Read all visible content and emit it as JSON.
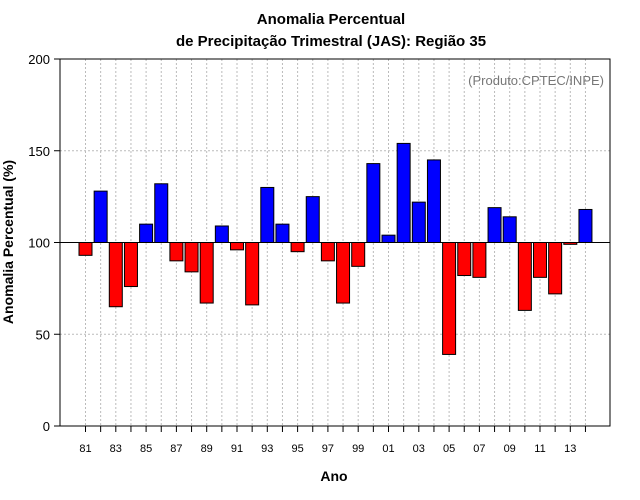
{
  "chart_data": {
    "type": "bar",
    "title_line1": "Anomalia Percentual",
    "title_line2": "de Precipitação Trimestral (JAS): Região 35",
    "xlabel": "Ano",
    "ylabel": "Anomalia Percentual (%)",
    "credit": "(Produto:CPTEC/INPE)",
    "baseline": 100,
    "ylim": [
      0,
      200
    ],
    "yticks": [
      0,
      50,
      100,
      150,
      200
    ],
    "ytick_labels": [
      "0",
      "50",
      "100",
      "150",
      "200"
    ],
    "grid": true,
    "xtick_labels": [
      "81",
      "83",
      "85",
      "87",
      "89",
      "91",
      "93",
      "95",
      "97",
      "99",
      "01",
      "03",
      "05",
      "07",
      "09",
      "11",
      "13"
    ],
    "categories": [
      "1981",
      "1982",
      "1983",
      "1984",
      "1985",
      "1986",
      "1987",
      "1988",
      "1989",
      "1990",
      "1991",
      "1992",
      "1993",
      "1994",
      "1995",
      "1996",
      "1997",
      "1998",
      "1999",
      "2000",
      "2001",
      "2002",
      "2003",
      "2004",
      "2005",
      "2006",
      "2007",
      "2008",
      "2009",
      "2010",
      "2011",
      "2012",
      "2013",
      "2014"
    ],
    "values": [
      93,
      128,
      65,
      76,
      110,
      132,
      90,
      84,
      67,
      109,
      96,
      66,
      130,
      110,
      95,
      125,
      90,
      67,
      87,
      143,
      104,
      154,
      122,
      145,
      39,
      82,
      81,
      119,
      114,
      63,
      81,
      72,
      99,
      118
    ],
    "colors": {
      "above": "#0000ff",
      "below": "#ff0000",
      "edge": "#000000",
      "grid": "#bbbbbb"
    }
  }
}
